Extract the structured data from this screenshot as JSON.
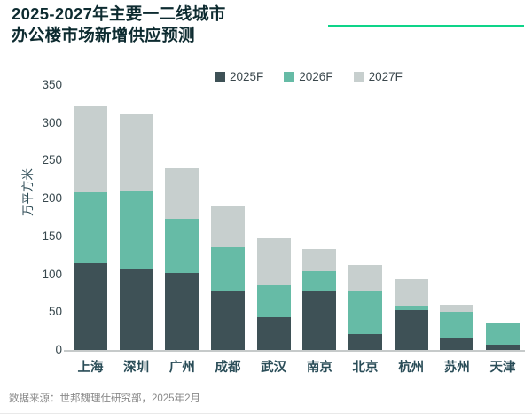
{
  "header": {
    "title_line1": "2025-2027年主要一二线城市",
    "title_line2": "办公楼市场新增供应预测",
    "accent_color": "#0ED489"
  },
  "chart_data": {
    "type": "bar",
    "stacked": true,
    "title": "2025-2027年主要一二线城市办公楼市场新增供应预测",
    "ylabel": "万平方米",
    "ylim": [
      0,
      350
    ],
    "yticks": [
      0,
      50,
      100,
      150,
      200,
      250,
      300,
      350
    ],
    "grid": false,
    "legend_position": "top",
    "categories": [
      "上海",
      "深圳",
      "广州",
      "成都",
      "武汉",
      "南京",
      "北京",
      "杭州",
      "苏州",
      "天津"
    ],
    "series": [
      {
        "name": "2025F",
        "color": "#3E5156",
        "values": [
          115,
          106,
          102,
          79,
          43,
          78,
          21,
          53,
          16,
          7
        ]
      },
      {
        "name": "2026F",
        "color": "#66BBA6",
        "values": [
          93,
          104,
          71,
          57,
          43,
          26,
          57,
          6,
          34,
          28
        ]
      },
      {
        "name": "2027F",
        "color": "#C7CFCE",
        "values": [
          114,
          101,
          67,
          54,
          61,
          29,
          34,
          35,
          10,
          0
        ]
      }
    ]
  },
  "footer": {
    "source": "数据来源：世邦魏理仕研究部，2025年2月"
  }
}
